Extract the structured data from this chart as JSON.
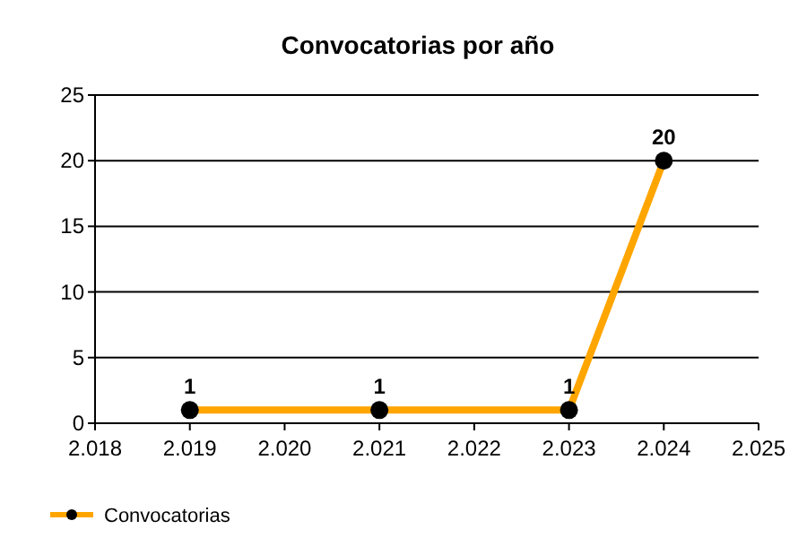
{
  "chart_data": {
    "type": "line",
    "title": "Convocatorias por año",
    "x": [
      2019,
      2021,
      2023,
      2024
    ],
    "series": [
      {
        "name": "Convocatorias",
        "color": "#ffa500",
        "values": [
          1,
          1,
          1,
          20
        ]
      }
    ],
    "xlim": [
      2018,
      2025
    ],
    "xticks": [
      {
        "value": 2018,
        "label": "2.018"
      },
      {
        "value": 2019,
        "label": "2.019"
      },
      {
        "value": 2020,
        "label": "2.020"
      },
      {
        "value": 2021,
        "label": "2.021"
      },
      {
        "value": 2022,
        "label": "2.022"
      },
      {
        "value": 2023,
        "label": "2.023"
      },
      {
        "value": 2024,
        "label": "2.024"
      },
      {
        "value": 2025,
        "label": "2.025"
      }
    ],
    "ylim": [
      0,
      25
    ],
    "yticks": [
      0,
      5,
      10,
      15,
      20,
      25
    ],
    "grid": "y",
    "legend": "bottom left",
    "marker": "circle",
    "line_style": "solid",
    "data_labels": true
  }
}
